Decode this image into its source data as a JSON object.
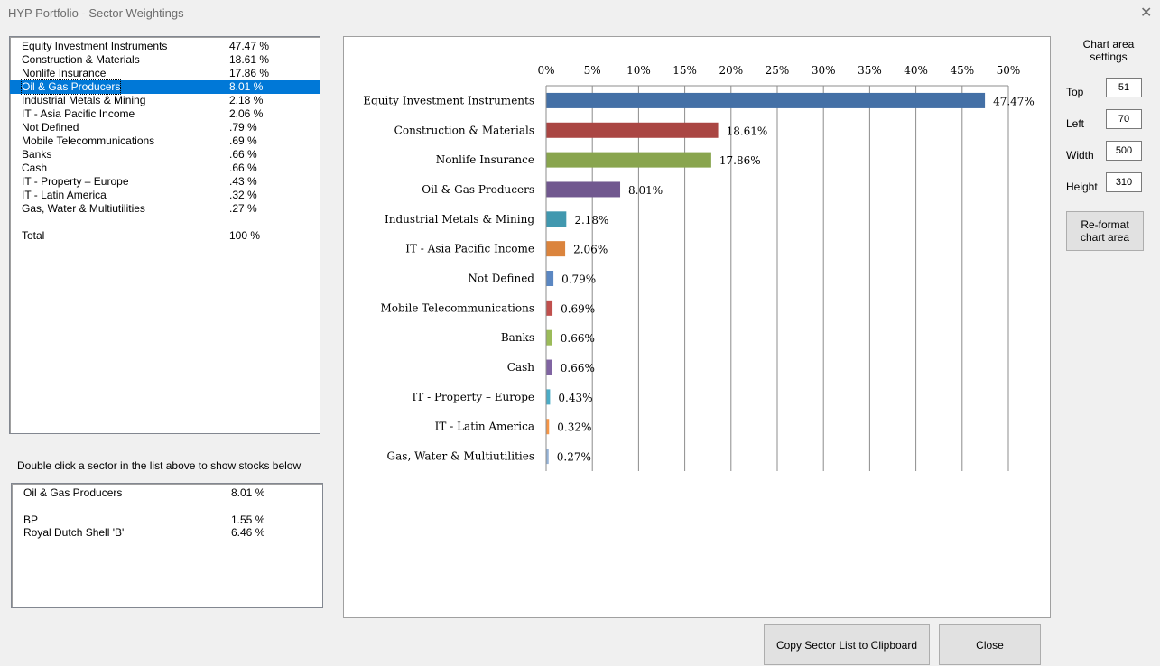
{
  "window": {
    "title": "HYP Portfolio - Sector Weightings",
    "close_glyph": "✕"
  },
  "sectors": [
    {
      "name": "Equity Investment Instruments",
      "value": "47.47 %"
    },
    {
      "name": "Construction & Materials",
      "value": "18.61 %"
    },
    {
      "name": "Nonlife Insurance",
      "value": "17.86 %"
    },
    {
      "name": "Oil & Gas Producers",
      "value": "8.01 %"
    },
    {
      "name": "Industrial Metals & Mining",
      "value": "2.18 %"
    },
    {
      "name": "IT - Asia Pacific Income",
      "value": "2.06 %"
    },
    {
      "name": "Not Defined",
      "value": ".79 %"
    },
    {
      "name": "Mobile Telecommunications",
      "value": ".69 %"
    },
    {
      "name": "Banks",
      "value": ".66 %"
    },
    {
      "name": "Cash",
      "value": ".66 %"
    },
    {
      "name": "IT - Property – Europe",
      "value": ".43 %"
    },
    {
      "name": "IT - Latin America",
      "value": ".32 %"
    },
    {
      "name": "Gas, Water & Multiutilities",
      "value": ".27 %"
    }
  ],
  "total": {
    "name": "Total",
    "value": "100 %"
  },
  "selected_sector_index": 3,
  "hint": "Double click a sector in the list above to show stocks below",
  "stocks_header": {
    "name": "Oil & Gas Producers",
    "value": "8.01 %"
  },
  "stocks": [
    {
      "name": "BP",
      "value": "1.55 %"
    },
    {
      "name": "Royal Dutch Shell 'B'",
      "value": "6.46 %"
    }
  ],
  "settings": {
    "title": "Chart area settings",
    "top_label": "Top",
    "top_value": "51",
    "left_label": "Left",
    "left_value": "70",
    "width_label": "Width",
    "width_value": "500",
    "height_label": "Height",
    "height_value": "310",
    "reformat_label": "Re-format chart area"
  },
  "buttons": {
    "copy_label": "Copy Sector List to Clipboard",
    "close_label": "Close"
  },
  "colors": {
    "selection": "#0078d7"
  },
  "chart_data": {
    "type": "bar",
    "orientation": "horizontal",
    "categories": [
      "Equity Investment Instruments",
      "Construction & Materials",
      "Nonlife Insurance",
      "Oil & Gas Producers",
      "Industrial Metals & Mining",
      "IT - Asia Pacific Income",
      "Not Defined",
      "Mobile Telecommunications",
      "Banks",
      "Cash",
      "IT - Property – Europe",
      "IT - Latin America",
      "Gas, Water & Multiutilities"
    ],
    "values": [
      47.47,
      18.61,
      17.86,
      8.01,
      2.18,
      2.06,
      0.79,
      0.69,
      0.66,
      0.66,
      0.43,
      0.32,
      0.27
    ],
    "data_labels": [
      "47.47%",
      "18.61%",
      "17.86%",
      "8.01%",
      "2.18%",
      "2.06%",
      "0.79%",
      "0.69%",
      "0.66%",
      "0.66%",
      "0.43%",
      "0.32%",
      "0.27%"
    ],
    "colors": [
      "#4470a6",
      "#aa4643",
      "#89a54e",
      "#71588f",
      "#4198af",
      "#db843d",
      "#5b87c2",
      "#c0504d",
      "#9bbb59",
      "#8064a2",
      "#4bacc6",
      "#f79646",
      "#95b3d7"
    ],
    "xlim": [
      0,
      50
    ],
    "xticks": [
      "0%",
      "5%",
      "10%",
      "15%",
      "20%",
      "25%",
      "30%",
      "35%",
      "40%",
      "45%",
      "50%"
    ],
    "axis_position": "top",
    "grid": true,
    "title": "",
    "xlabel": "",
    "ylabel": ""
  }
}
